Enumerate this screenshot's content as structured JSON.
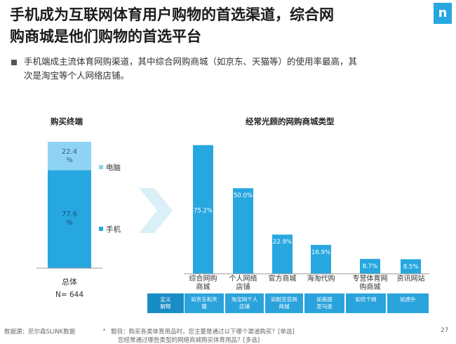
{
  "title": {
    "line1": "手机成为互联网体育用户购物的首选渠道，综合网",
    "line2": "购商城是他们购物的首选平台"
  },
  "logo_text": "n",
  "subtitle": {
    "line1": "手机端成主流体育网购渠道，其中综合网购商城（如京东、天猫等）的使用率最高，其",
    "line2": "次是淘宝等个人网络店铺。"
  },
  "colors": {
    "bar_dark": "#27a7e0",
    "bar_light": "#8fd3f4",
    "table_dark": "#1a8cc4",
    "table_cell": "#2aa3dc",
    "arrow": "#dbeff8"
  },
  "chart_data": [
    {
      "type": "bar",
      "stacked": true,
      "title": "购买终端",
      "categories": [
        "总体"
      ],
      "series": [
        {
          "name": "手机",
          "values": [
            77.6
          ],
          "label": "77.6\n%"
        },
        {
          "name": "电脑",
          "values": [
            22.4
          ],
          "label": "22.4\n%"
        }
      ],
      "sample": "N= 644",
      "ylim": [
        0,
        100
      ]
    },
    {
      "type": "bar",
      "title": "经常光顾的网购商城类型",
      "categories": [
        "综合网购\n商城",
        "个人网络\n店铺",
        "官方商城",
        "海淘代购",
        "专营体育网\n购商城",
        "资讯网站"
      ],
      "values": [
        75.2,
        50.0,
        22.9,
        16.9,
        8.7,
        8.5
      ],
      "value_labels": [
        "75.2%",
        "50.0%",
        "22.9%",
        "16.9%",
        "8.7%",
        "8.5%"
      ],
      "ylim": [
        0,
        80
      ],
      "table": {
        "header": "定义\n解释",
        "cells": [
          "如京东和天\n猫",
          "淘宝网个人\n店铺",
          "如耐克官网\n商城",
          "如美国\n亚马逊",
          "如优个网",
          "如虎扑"
        ]
      }
    }
  ],
  "footer": {
    "source": "数据源：尼尔森SLINK数据",
    "question_line1": "题目：购买各类体育用品时，您主要是通过以下哪个渠道购买？[单选]",
    "question_line2": "您经常通过哪些类型的网络商城购买体育用品？[多选]"
  },
  "page_number": "27"
}
